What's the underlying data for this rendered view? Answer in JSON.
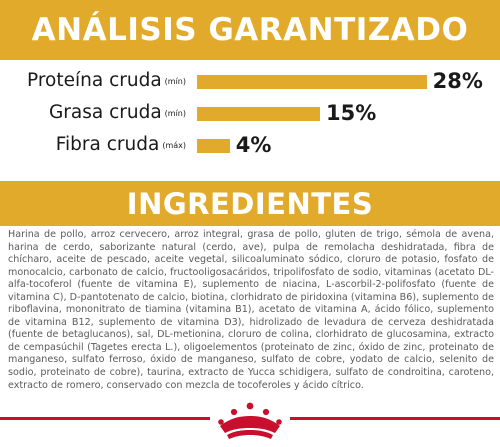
{
  "analysis": {
    "title": "ANÁLISIS GARANTIZADO",
    "rows": [
      {
        "name": "Proteína cruda",
        "qualifier": "(mín)",
        "percent": 28,
        "value": "28%"
      },
      {
        "name": "Grasa cruda",
        "qualifier": "(mín)",
        "percent": 15,
        "value": "15%"
      },
      {
        "name": "Fibra cruda",
        "qualifier": "(máx)",
        "percent": 4,
        "value": "4%"
      }
    ]
  },
  "ingredients": {
    "title": "INGREDIENTES",
    "text": "Harina de pollo, arroz cervecero, arroz integral, grasa de pollo, gluten de trigo, sémola de avena, harina de cerdo, saborizante natural (cerdo, ave), pulpa de remolacha deshidratada, fibra de chícharo, aceite de pescado, aceite vegetal, silicoaluminato sódico, cloruro de potasio, fosfato de monocalcio, carbonato de calcio, fructooligosacáridos, tripolifosfato de sodio, vitaminas (acetato DL-alfa-tocoferol (fuente de vitamina E), suplemento de niacina, L-ascorbil-2-polifosfato (fuente de vitamina C), D-pantotenato de calcio, biotina, clorhidrato de piridoxina (vitamina B6), suplemento de riboflavina, mononitrato de tiamina (vitamina B1), acetato de vitamina A, ácido fólico, suplemento de vitamina B12, suplemento de vitamina D3), hidrolizado de levadura de cerveza deshidratada (fuente de betaglucanos), sal, DL-metionina, cloruro de colina, clorhidrato de glucosamina, extracto de cempasúchil (Tagetes erecta L.), oligoelementos (proteinato de zinc, óxido de zinc, proteinato de manganeso, sulfato ferroso, óxido de manganeso, sulfato de cobre, yodato de calcio, selenito de sodio, proteinato de cobre), taurina, extracto de Yucca schidigera, sulfato de condroitina, caroteno, extracto de romero, conservado con mezcla de tocoferoles y ácido cítrico."
  },
  "colors": {
    "accent": "#e2aa2b",
    "brand_red": "#c8102e"
  },
  "footer": {
    "logo": "royal-canin-crown-icon"
  }
}
